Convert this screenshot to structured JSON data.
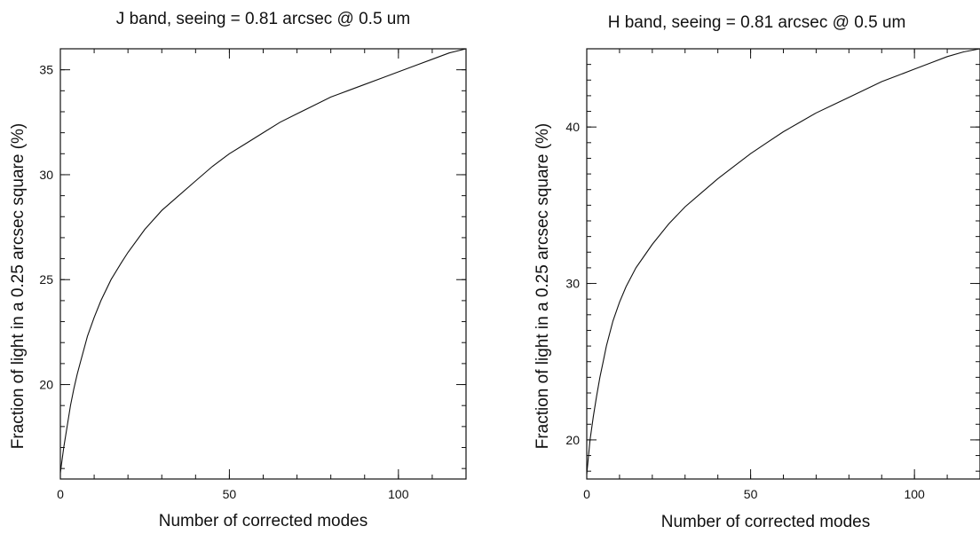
{
  "chart_data": [
    {
      "type": "line",
      "title": "J band, seeing = 0.81 arcsec @ 0.5 um",
      "xlabel": "Number of corrected modes",
      "ylabel": "Fraction of light in a 0.25 arcsec square (%)",
      "xlim": [
        0,
        120
      ],
      "ylim": [
        15.5,
        36
      ],
      "x_ticks": [
        0,
        50,
        100
      ],
      "y_ticks": [
        20,
        25,
        30,
        35
      ],
      "x_minor_step": 10,
      "y_minor_step": 1,
      "grid": false,
      "series": [
        {
          "x": [
            0,
            1,
            2,
            3,
            4,
            5,
            6,
            8,
            10,
            12,
            15,
            18,
            20,
            25,
            30,
            35,
            40,
            45,
            50,
            55,
            60,
            65,
            70,
            75,
            80,
            85,
            90,
            95,
            100,
            105,
            110,
            115,
            120
          ],
          "values": [
            15.8,
            17.0,
            18.0,
            19.0,
            19.8,
            20.5,
            21.1,
            22.3,
            23.2,
            24.0,
            25.0,
            25.8,
            26.3,
            27.4,
            28.3,
            29.0,
            29.7,
            30.4,
            31.0,
            31.5,
            32.0,
            32.5,
            32.9,
            33.3,
            33.7,
            34.0,
            34.3,
            34.6,
            34.9,
            35.2,
            35.5,
            35.8,
            36.0
          ]
        }
      ]
    },
    {
      "type": "line",
      "title": "H band, seeing = 0.81 arcsec @ 0.5 um",
      "xlabel": "Number of corrected modes",
      "ylabel": "Fraction of light in a 0.25 arcsec square (%)",
      "xlim": [
        0,
        120
      ],
      "ylim": [
        17.5,
        45
      ],
      "x_ticks": [
        0,
        50,
        100
      ],
      "y_ticks": [
        20,
        30,
        40
      ],
      "x_minor_step": 10,
      "y_minor_step": 1,
      "grid": false,
      "series": [
        {
          "x": [
            0,
            1,
            2,
            3,
            4,
            5,
            6,
            8,
            10,
            12,
            15,
            18,
            20,
            25,
            30,
            35,
            40,
            45,
            50,
            55,
            60,
            65,
            70,
            75,
            80,
            85,
            90,
            95,
            100,
            105,
            110,
            115,
            120
          ],
          "values": [
            17.8,
            20.0,
            21.5,
            22.8,
            24.0,
            25.0,
            26.0,
            27.6,
            28.8,
            29.8,
            31.0,
            31.9,
            32.5,
            33.8,
            34.9,
            35.8,
            36.7,
            37.5,
            38.3,
            39.0,
            39.7,
            40.3,
            40.9,
            41.4,
            41.9,
            42.4,
            42.9,
            43.3,
            43.7,
            44.1,
            44.5,
            44.8,
            45.0
          ]
        }
      ]
    }
  ]
}
